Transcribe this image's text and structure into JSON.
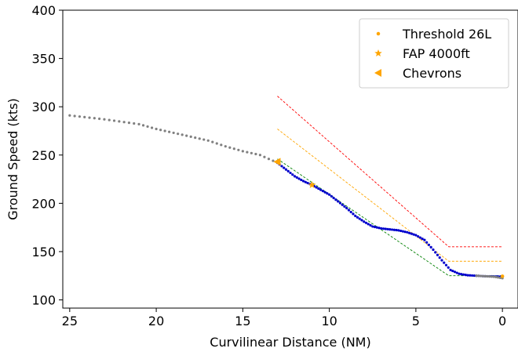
{
  "chart_data": {
    "type": "scatter",
    "xlabel": "Curvilinear Distance (NM)",
    "ylabel": "Ground Speed (kts)",
    "xlim": [
      25.4,
      -0.9
    ],
    "ylim": [
      91.5,
      400
    ],
    "x_inverted": true,
    "xticks": [
      25,
      20,
      15,
      10,
      5,
      0
    ],
    "yticks": [
      100,
      150,
      200,
      250,
      300,
      350,
      400
    ],
    "grid": false,
    "legend_position": "top-right",
    "colors": {
      "history": "#808080",
      "approach": "#0000cc",
      "marker": "#ffa500",
      "red_band": "#ff0000",
      "orange_band": "#ffa500",
      "green_band": "#008000"
    },
    "series": [
      {
        "name": "Threshold 26L",
        "kind": "marker",
        "marker": "circle",
        "color": "#ffa500",
        "points": [
          [
            0,
            124.5
          ]
        ]
      },
      {
        "name": "FAP 4000ft",
        "kind": "marker",
        "marker": "star",
        "color": "#ffa500",
        "points": [
          [
            11,
            219
          ]
        ]
      },
      {
        "name": "Chevrons",
        "kind": "marker",
        "marker": "triangle-left",
        "color": "#ffa500",
        "points": [
          [
            13,
            243
          ]
        ]
      }
    ],
    "trajectory_history": {
      "color": "#808080",
      "points": [
        [
          25,
          291
        ],
        [
          23,
          287
        ],
        [
          21,
          282
        ],
        [
          20,
          277
        ],
        [
          19,
          273
        ],
        [
          18,
          269
        ],
        [
          17,
          265
        ],
        [
          16,
          259
        ],
        [
          15,
          254
        ],
        [
          14,
          250
        ],
        [
          13.5,
          246
        ],
        [
          13,
          242
        ]
      ]
    },
    "trajectory_approach": {
      "color": "#0000cc",
      "points": [
        [
          13,
          242
        ],
        [
          12.5,
          235
        ],
        [
          12,
          228
        ],
        [
          11.5,
          223
        ],
        [
          11,
          219
        ],
        [
          10.5,
          214
        ],
        [
          10,
          209
        ],
        [
          9.5,
          202
        ],
        [
          9,
          195
        ],
        [
          8.5,
          187
        ],
        [
          8,
          181
        ],
        [
          7.5,
          176
        ],
        [
          7,
          174
        ],
        [
          6.5,
          173
        ],
        [
          6,
          172
        ],
        [
          5.5,
          170
        ],
        [
          5,
          167
        ],
        [
          4.5,
          162
        ],
        [
          4,
          152
        ],
        [
          3.5,
          141
        ],
        [
          3,
          131
        ],
        [
          2.5,
          127
        ],
        [
          2,
          125.5
        ],
        [
          1.5,
          125
        ],
        [
          1,
          124.5
        ],
        [
          0.5,
          124.3
        ],
        [
          0,
          124
        ]
      ]
    },
    "trajectory_tail": {
      "color": "#808080",
      "points": [
        [
          1.5,
          125
        ],
        [
          1,
          124.5
        ],
        [
          0.5,
          124
        ],
        [
          0,
          122.5
        ]
      ]
    },
    "reference_lines": [
      {
        "color": "#ff0000",
        "points": [
          [
            13,
            311
          ],
          [
            3.1,
            155
          ],
          [
            0,
            155
          ]
        ]
      },
      {
        "color": "#ffa500",
        "points": [
          [
            13,
            277
          ],
          [
            3.1,
            140
          ],
          [
            0,
            140
          ]
        ]
      },
      {
        "color": "#008000",
        "points": [
          [
            13,
            246
          ],
          [
            3.1,
            125
          ],
          [
            0,
            125
          ]
        ]
      }
    ]
  }
}
